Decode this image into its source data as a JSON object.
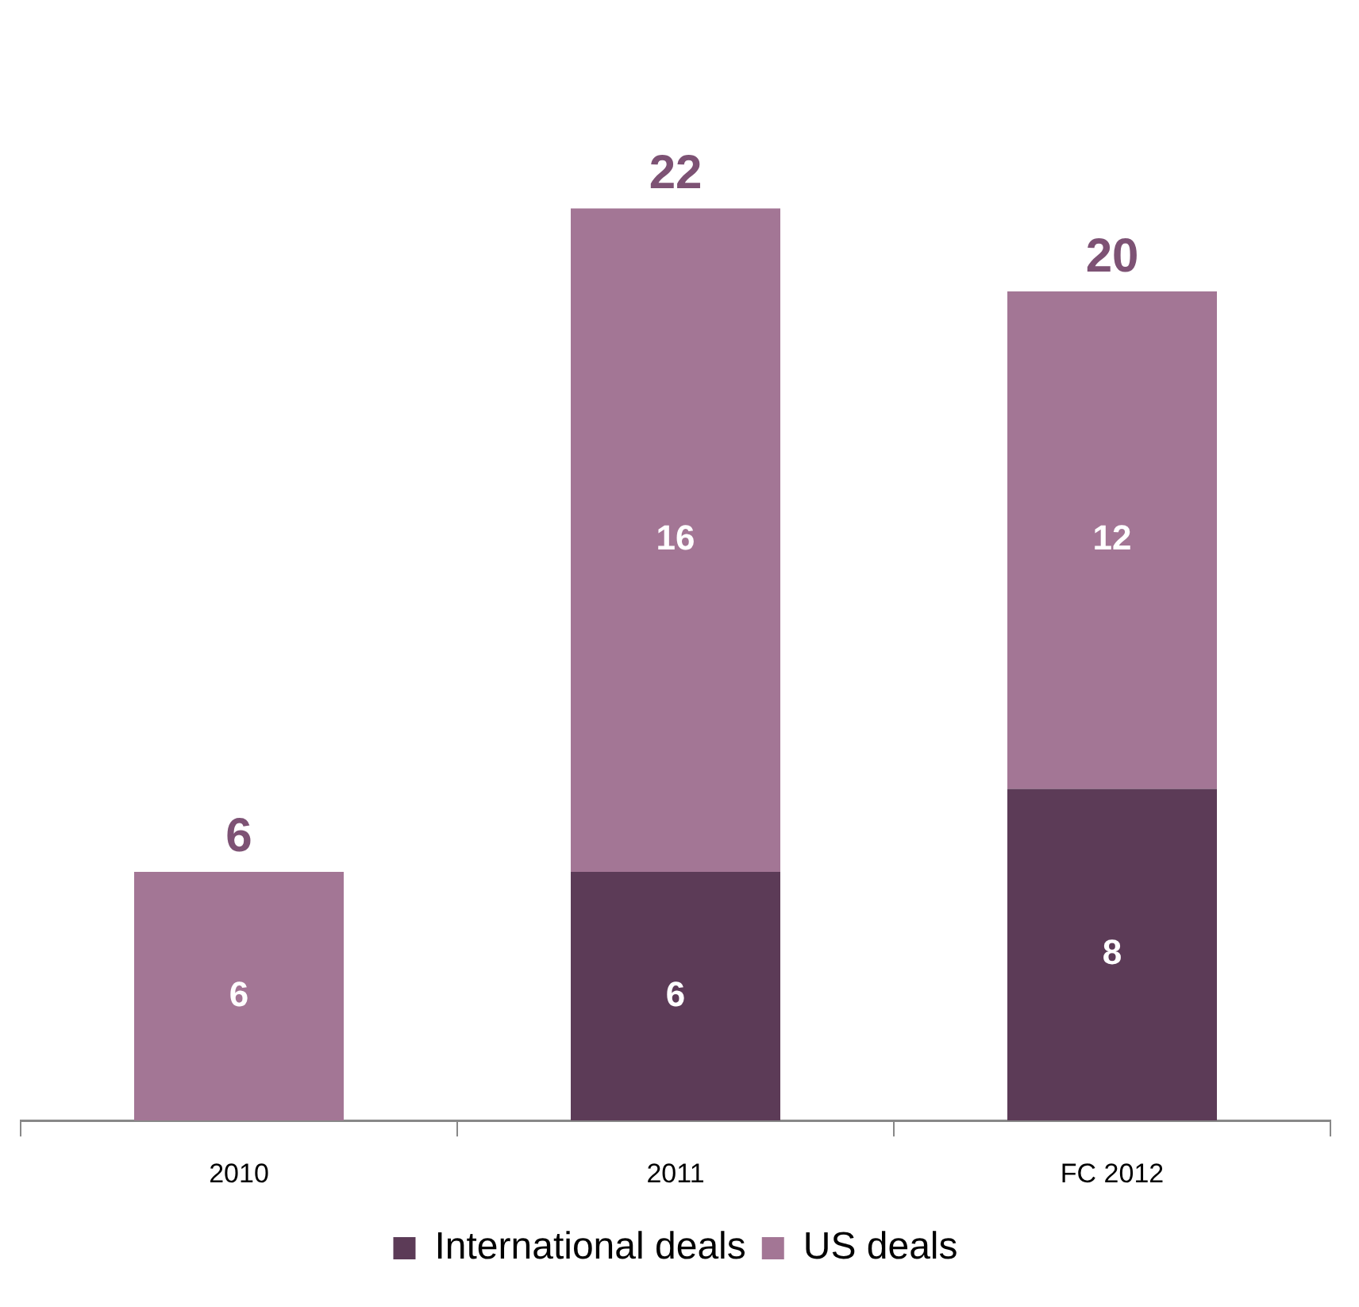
{
  "chart_data": {
    "type": "bar",
    "stacked": true,
    "categories": [
      "2010",
      "2011",
      "FC 2012"
    ],
    "series": [
      {
        "name": "International deals",
        "color": "#5c3b57",
        "values": [
          null,
          6,
          8
        ]
      },
      {
        "name": "US deals",
        "color": "#a37695",
        "values": [
          6,
          16,
          12
        ]
      }
    ],
    "data_labels": true,
    "totals": [
      "6",
      "22",
      "20"
    ],
    "legend": "bottom",
    "grid": false
  }
}
